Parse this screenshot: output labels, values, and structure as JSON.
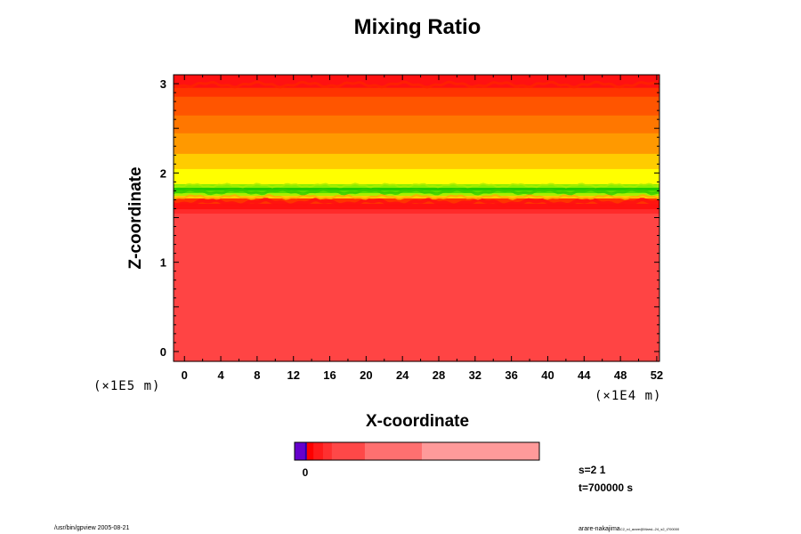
{
  "chart_data": {
    "type": "heatmap",
    "title": "Mixing Ratio",
    "xlabel": "X-coordinate",
    "ylabel": "Z-coordinate",
    "x_unit": "(×1E4 m)",
    "y_unit": "(×1E5 m)",
    "xlim": [
      -1.2,
      52.3
    ],
    "ylim": [
      -0.11,
      3.1
    ],
    "x_ticks": [
      0,
      4,
      8,
      12,
      16,
      20,
      24,
      28,
      32,
      36,
      40,
      44,
      48,
      52
    ],
    "y_ticks": [
      0,
      1,
      2,
      3
    ],
    "layers": [
      {
        "z0": -0.11,
        "z1": 1.55,
        "color": "#ff4444"
      },
      {
        "z0": 1.55,
        "z1": 1.6,
        "color": "#ff2a2a"
      },
      {
        "z0": 1.6,
        "z1": 1.66,
        "color": "#ff1111"
      },
      {
        "z0": 1.66,
        "z1": 1.72,
        "color": "#ff3300"
      },
      {
        "z0": 1.72,
        "z1": 1.75,
        "color": "#ffcc00"
      },
      {
        "z0": 1.75,
        "z1": 1.78,
        "color": "#aaee00"
      },
      {
        "z0": 1.78,
        "z1": 1.81,
        "color": "#55dd00"
      },
      {
        "z0": 1.81,
        "z1": 1.84,
        "color": "#22cc00"
      },
      {
        "z0": 1.84,
        "z1": 1.88,
        "color": "#88ee00"
      },
      {
        "z0": 1.88,
        "z1": 2.05,
        "color": "#ffff00"
      },
      {
        "z0": 2.05,
        "z1": 2.22,
        "color": "#ffcc00"
      },
      {
        "z0": 2.22,
        "z1": 2.45,
        "color": "#ff9900"
      },
      {
        "z0": 2.45,
        "z1": 2.65,
        "color": "#ff7700"
      },
      {
        "z0": 2.65,
        "z1": 2.86,
        "color": "#ff5500"
      },
      {
        "z0": 2.86,
        "z1": 2.96,
        "color": "#ff3300"
      },
      {
        "z0": 2.96,
        "z1": 3.1,
        "color": "#ff1111"
      }
    ],
    "colorbar": {
      "zero_label": "0",
      "segments": [
        {
          "w": 0.043,
          "color": "#6600cc"
        },
        {
          "w": 0.007,
          "color": "#2200aa"
        },
        {
          "w": 0.027,
          "color": "#ff0000"
        },
        {
          "w": 0.039,
          "color": "#ff1a1a"
        },
        {
          "w": 0.036,
          "color": "#ff3030"
        },
        {
          "w": 0.135,
          "color": "#ff4848"
        },
        {
          "w": 0.233,
          "color": "#ff7070"
        },
        {
          "w": 0.48,
          "color": "#ff9a9a"
        }
      ]
    }
  },
  "info": {
    "step": "s=2 1",
    "time": "t=700000 s"
  },
  "footer": {
    "left": "/usr/bin/gpview 2005-08-21",
    "right_main": "arare-nakajima",
    "right_small": "C2_rd_arare@MarsL-24_s2_t700000"
  }
}
